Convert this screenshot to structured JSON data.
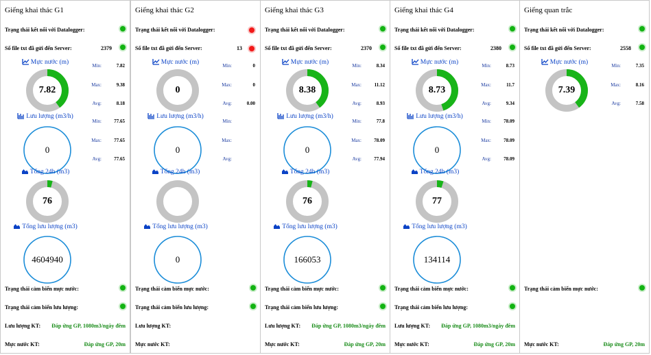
{
  "panels": [
    {
      "title": "Giếng khai thác G1",
      "connection_label": "Trạng thái kết nối với Datalogger:",
      "connection_status": "green",
      "files_label": "Số file txt đã gửi đến Server:",
      "files_count": "2379",
      "files_status": "green",
      "sections": {
        "water_level": "Mực nước (m)",
        "flow": "Lưu lượng (m3/h)",
        "total24": "Tổng 24h (m3)",
        "total_flow": "Tổng lưu lượng (m3)"
      },
      "water_level": {
        "value": "7.82",
        "fraction": 0.4,
        "min": "7.82",
        "max": "9.38",
        "avg": "8.18"
      },
      "flow": {
        "value": "0",
        "min": "77.65",
        "max": "77.65",
        "avg": "77.65"
      },
      "total24": {
        "value": "76",
        "fraction": 0.04
      },
      "total_flow": {
        "value": "4604940"
      },
      "sensor_level_label": "Trạng thái cảm biến mực nước:",
      "sensor_level_status": "green",
      "sensor_flow_label": "Trạng thái cảm biến lưu lượng:",
      "sensor_flow_status": "green",
      "flow_kt_label": "Lưu lượng KT:",
      "flow_kt_value": "Đáp ứng GP, 1080m3/ngày đêm",
      "level_kt_label": "Mực nước KT:",
      "level_kt_value": "Đáp ứng GP, 20m"
    },
    {
      "title": "Giếng khai thác G2",
      "connection_label": "Trạng thái kết nối với Datalogger:",
      "connection_status": "red",
      "files_label": "Số file txt đã gửi đến Server:",
      "files_count": "13",
      "files_status": "red",
      "sections": {
        "water_level": "Mực nước (m)",
        "flow": "Lưu lượng (m3/h)",
        "total24": "Tổng 24h (m3)",
        "total_flow": "Tổng lưu lượng (m3)"
      },
      "water_level": {
        "value": "0",
        "fraction": 0,
        "min": "0",
        "max": "0",
        "avg": "0.00"
      },
      "flow": {
        "value": "0",
        "min": "",
        "max": "",
        "avg": ""
      },
      "total24": {
        "value": "",
        "fraction": 0
      },
      "total_flow": {
        "value": "0"
      },
      "sensor_level_label": "Trạng thái cảm biến mực nước:",
      "sensor_level_status": "green",
      "sensor_flow_label": "Trạng thái cảm biến lưu lượng:",
      "sensor_flow_status": "green",
      "flow_kt_label": "Lưu lượng KT:",
      "flow_kt_value": "",
      "level_kt_label": "Mực nước KT:",
      "level_kt_value": ""
    },
    {
      "title": "Giếng khai thác G3",
      "connection_label": "Trạng thái kết nối với Datalogger:",
      "connection_status": "green",
      "files_label": "Số file txt đã gửi đến Server:",
      "files_count": "2370",
      "files_status": "green",
      "sections": {
        "water_level": "Mực nước (m)",
        "flow": "Lưu lượng (m3/h)",
        "total24": "Tổng 24h (m3)",
        "total_flow": "Tổng lưu lượng (m3)"
      },
      "water_level": {
        "value": "8.38",
        "fraction": 0.4,
        "min": "8.34",
        "max": "11.12",
        "avg": "8.93"
      },
      "flow": {
        "value": "0",
        "min": "77.8",
        "max": "78.09",
        "avg": "77.94"
      },
      "total24": {
        "value": "76",
        "fraction": 0.04
      },
      "total_flow": {
        "value": "166053"
      },
      "sensor_level_label": "Trạng thái cảm biến mực nước:",
      "sensor_level_status": "green",
      "sensor_flow_label": "Trạng thái cảm biến lưu lượng:",
      "sensor_flow_status": "green",
      "flow_kt_label": "Lưu lượng KT:",
      "flow_kt_value": "Đáp ứng GP, 1080m3/ngày đêm",
      "level_kt_label": "Mực nước KT:",
      "level_kt_value": "Đáp ứng GP, 20m"
    },
    {
      "title": "Giếng khai thác G4",
      "connection_label": "Trạng thái kết nối với Datalogger:",
      "connection_status": "green",
      "files_label": "Số file txt đã gửi đến Server:",
      "files_count": "2380",
      "files_status": "green",
      "sections": {
        "water_level": "Mực nước (m)",
        "flow": "Lưu lượng (m3/h)",
        "total24": "Tổng 24h (m3)",
        "total_flow": "Tổng lưu lượng (m3)"
      },
      "water_level": {
        "value": "8.73",
        "fraction": 0.45,
        "min": "8.73",
        "max": "11.7",
        "avg": "9.34"
      },
      "flow": {
        "value": "0",
        "min": "78.09",
        "max": "78.09",
        "avg": "78.09"
      },
      "total24": {
        "value": "77",
        "fraction": 0.05
      },
      "total_flow": {
        "value": "134114"
      },
      "sensor_level_label": "Trạng thái cảm biến mực nước:",
      "sensor_level_status": "green",
      "sensor_flow_label": "Trạng thái cảm biến lưu lượng:",
      "sensor_flow_status": "green",
      "flow_kt_label": "Lưu lượng KT:",
      "flow_kt_value": "Đáp ứng GP, 1080m3/ngày đêm",
      "level_kt_label": "Mực nước KT:",
      "level_kt_value": "Đáp ứng GP, 20m"
    },
    {
      "title": "Giếng quan trắc",
      "connection_label": "Trạng thái kết nối với Datalogger:",
      "connection_status": "green",
      "files_label": "Số file txt đã gửi đến Server:",
      "files_count": "2558",
      "files_status": "green",
      "sections": {
        "water_level": "Mực nước (m)"
      },
      "water_level": {
        "value": "7.39",
        "fraction": 0.4,
        "min": "7.35",
        "max": "8.16",
        "avg": "7.58"
      },
      "sensor_level_label": "Trạng thái cảm biến mực nước:",
      "sensor_level_status": "green",
      "level_kt_label": "Mực nước KT:",
      "level_kt_value": "Đáp ứng GP, 20m"
    }
  ],
  "stat_labels": {
    "min": "Min:",
    "max": "Max:",
    "avg": "Avg:"
  },
  "colors": {
    "gauge_fill": "#18b418",
    "gauge_track": "#c4c4c4",
    "flow_circle": "#1a8cd8",
    "section_text": "#0b43c6",
    "ok_text": "#1a8c1a"
  },
  "icons": {
    "water_level": "line-chart-icon",
    "flow": "bar-chart-icon",
    "total24": "area-chart-icon",
    "total_flow": "area-chart-icon"
  }
}
